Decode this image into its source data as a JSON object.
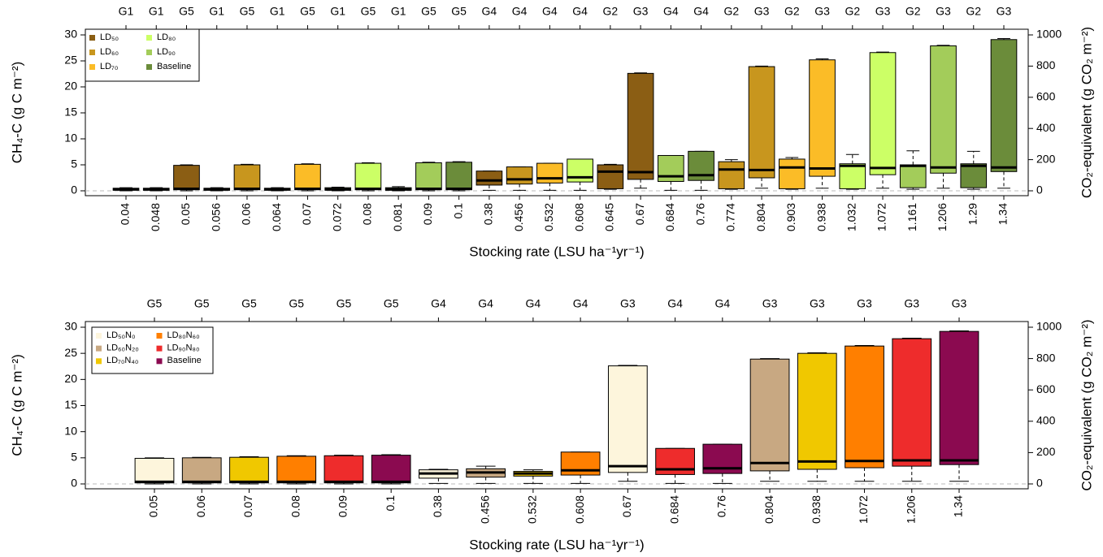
{
  "chart_data": [
    {
      "type": "box",
      "y_label": "CH₄-C (g C m⁻²)",
      "y2_label": "CO₂-equivalent (g CO₂ m⁻²)",
      "x_label": "Stocking rate (LSU  ha⁻¹yr⁻¹)",
      "ylim": [
        0,
        30
      ],
      "yticks": [
        0,
        5,
        10,
        15,
        20,
        25,
        30
      ],
      "y2lim": [
        0,
        1000
      ],
      "y2ticks": [
        0,
        200,
        400,
        600,
        800,
        1000
      ],
      "legend_position": "upper-left",
      "legend": [
        {
          "name": "LD₅₀",
          "color": "#8b5e14"
        },
        {
          "name": "LD₆₀",
          "color": "#c8961e"
        },
        {
          "name": "LD₇₀",
          "color": "#fbbc27"
        },
        {
          "name": "LD₈₀",
          "color": "#ccff66"
        },
        {
          "name": "LD₉₀",
          "color": "#a3cc5a"
        },
        {
          "name": "Baseline",
          "color": "#6b8c3a"
        }
      ],
      "categories": [
        "0.04",
        "0.048",
        "0.05",
        "0.056",
        "0.06",
        "0.064",
        "0.07",
        "0.072",
        "0.08",
        "0.081",
        "0.09",
        "0.1",
        "0.38",
        "0.456",
        "0.532",
        "0.608",
        "0.645",
        "0.67",
        "0.684",
        "0.76",
        "0.774",
        "0.804",
        "0.903",
        "0.938",
        "1.032",
        "1.072",
        "1.161",
        "1.206",
        "1.29",
        "1.34"
      ],
      "top_labels": [
        "G1",
        "G1",
        "G5",
        "G1",
        "G5",
        "G1",
        "G5",
        "G1",
        "G5",
        "G1",
        "G5",
        "G5",
        "G4",
        "G4",
        "G4",
        "G4",
        "G2",
        "G3",
        "G4",
        "G4",
        "G2",
        "G3",
        "G2",
        "G3",
        "G2",
        "G3",
        "G2",
        "G3",
        "G2",
        "G3"
      ],
      "boxes": [
        {
          "color": "#8b5e14",
          "low": 0,
          "q1": 0.1,
          "median": 0.3,
          "q3": 0.5,
          "high": 0.6
        },
        {
          "color": "#c8961e",
          "low": 0,
          "q1": 0.1,
          "median": 0.3,
          "q3": 0.5,
          "high": 0.6
        },
        {
          "color": "#8b5e14",
          "low": 0,
          "q1": 0.2,
          "median": 0.4,
          "q3": 4.9,
          "high": 5.0
        },
        {
          "color": "#fbbc27",
          "low": 0,
          "q1": 0.1,
          "median": 0.3,
          "q3": 0.5,
          "high": 0.6
        },
        {
          "color": "#c8961e",
          "low": 0,
          "q1": 0.2,
          "median": 0.4,
          "q3": 5.0,
          "high": 5.1
        },
        {
          "color": "#ccff66",
          "low": 0,
          "q1": 0.1,
          "median": 0.3,
          "q3": 0.5,
          "high": 0.6
        },
        {
          "color": "#fbbc27",
          "low": 0,
          "q1": 0.2,
          "median": 0.4,
          "q3": 5.1,
          "high": 5.2
        },
        {
          "color": "#a3cc5a",
          "low": 0,
          "q1": 0.1,
          "median": 0.3,
          "q3": 0.6,
          "high": 0.7
        },
        {
          "color": "#ccff66",
          "low": 0,
          "q1": 0.2,
          "median": 0.4,
          "q3": 5.3,
          "high": 5.4
        },
        {
          "color": "#6b8c3a",
          "low": 0,
          "q1": 0.1,
          "median": 0.3,
          "q3": 0.6,
          "high": 0.8
        },
        {
          "color": "#a3cc5a",
          "low": 0,
          "q1": 0.2,
          "median": 0.4,
          "q3": 5.4,
          "high": 5.5
        },
        {
          "color": "#6b8c3a",
          "low": 0,
          "q1": 0.2,
          "median": 0.4,
          "q3": 5.5,
          "high": 5.6
        },
        {
          "color": "#8b5e14",
          "low": 0.1,
          "q1": 1.1,
          "median": 2.0,
          "q3": 3.8,
          "high": 3.8
        },
        {
          "color": "#c8961e",
          "low": 0.1,
          "q1": 1.3,
          "median": 2.2,
          "q3": 4.6,
          "high": 4.6
        },
        {
          "color": "#fbbc27",
          "low": 0.1,
          "q1": 1.5,
          "median": 2.4,
          "q3": 5.3,
          "high": 5.3
        },
        {
          "color": "#ccff66",
          "low": 0.1,
          "q1": 1.7,
          "median": 2.6,
          "q3": 6.1,
          "high": 6.1
        },
        {
          "color": "#8b5e14",
          "low": 0.3,
          "q1": 0.4,
          "median": 3.7,
          "q3": 5.0,
          "high": 5.1
        },
        {
          "color": "#8b5e14",
          "low": 0.5,
          "q1": 2.2,
          "median": 3.6,
          "q3": 22.6,
          "high": 22.7
        },
        {
          "color": "#a3cc5a",
          "low": 0.1,
          "q1": 1.8,
          "median": 2.8,
          "q3": 6.8,
          "high": 6.8
        },
        {
          "color": "#6b8c3a",
          "low": 0.1,
          "q1": 2.0,
          "median": 3.0,
          "q3": 7.6,
          "high": 7.6
        },
        {
          "color": "#c8961e",
          "low": 0.3,
          "q1": 0.4,
          "median": 4.1,
          "q3": 5.6,
          "high": 6.0
        },
        {
          "color": "#c8961e",
          "low": 0.5,
          "q1": 2.5,
          "median": 4.0,
          "q3": 23.9,
          "high": 24.0
        },
        {
          "color": "#fbbc27",
          "low": 0.3,
          "q1": 0.4,
          "median": 4.5,
          "q3": 6.1,
          "high": 6.4
        },
        {
          "color": "#fbbc27",
          "low": 0.5,
          "q1": 2.8,
          "median": 4.3,
          "q3": 25.2,
          "high": 25.4
        },
        {
          "color": "#ccff66",
          "low": 0.3,
          "q1": 0.4,
          "median": 4.8,
          "q3": 5.2,
          "high": 7.0
        },
        {
          "color": "#ccff66",
          "low": 0.5,
          "q1": 3.1,
          "median": 4.4,
          "q3": 26.6,
          "high": 26.7
        },
        {
          "color": "#a3cc5a",
          "low": 0.3,
          "q1": 0.6,
          "median": 4.8,
          "q3": 5.0,
          "high": 7.7
        },
        {
          "color": "#a3cc5a",
          "low": 0.5,
          "q1": 3.4,
          "median": 4.5,
          "q3": 27.9,
          "high": 28.0
        },
        {
          "color": "#6b8c3a",
          "low": 0.3,
          "q1": 0.6,
          "median": 4.8,
          "q3": 5.2,
          "high": 7.6
        },
        {
          "color": "#6b8c3a",
          "low": 0.5,
          "q1": 3.7,
          "median": 4.5,
          "q3": 29.1,
          "high": 29.3
        }
      ]
    },
    {
      "type": "box",
      "y_label": "CH₄-C (g C m⁻²)",
      "y2_label": "CO₂-equivalent (g CO₂ m⁻²)",
      "x_label": "Stocking rate (LSU  ha⁻¹yr⁻¹)",
      "ylim": [
        0,
        30
      ],
      "yticks": [
        0,
        5,
        10,
        15,
        20,
        25,
        30
      ],
      "y2lim": [
        0,
        1000
      ],
      "y2ticks": [
        0,
        200,
        400,
        600,
        800,
        1000
      ],
      "legend_position": "upper-left",
      "legend": [
        {
          "name": "LD₅₀N₀",
          "color": "#fdf5dc"
        },
        {
          "name": "LD₆₀N₂₀",
          "color": "#c8a882"
        },
        {
          "name": "LD₇₀N₄₀",
          "color": "#f0c800"
        },
        {
          "name": "LD₈₀N₆₀",
          "color": "#ff7f00"
        },
        {
          "name": "LD₉₀N₈₀",
          "color": "#ee2c2c"
        },
        {
          "name": "Baseline",
          "color": "#8b0a50"
        }
      ],
      "categories": [
        "0.05",
        "0.06",
        "0.07",
        "0.08",
        "0.09",
        "0.1",
        "0.38",
        "0.456",
        "0.532",
        "0.608",
        "0.67",
        "0.684",
        "0.76",
        "0.804",
        "0.938",
        "1.072",
        "1.206",
        "1.34"
      ],
      "top_labels": [
        "G5",
        "G5",
        "G5",
        "G5",
        "G5",
        "G5",
        "G4",
        "G4",
        "G4",
        "G4",
        "G3",
        "G4",
        "G4",
        "G3",
        "G3",
        "G3",
        "G3",
        "G3"
      ],
      "boxes": [
        {
          "color": "#fdf5dc",
          "low": 0,
          "q1": 0.2,
          "median": 0.4,
          "q3": 4.9,
          "high": 5.0
        },
        {
          "color": "#c8a882",
          "low": 0,
          "q1": 0.2,
          "median": 0.4,
          "q3": 5.0,
          "high": 5.1
        },
        {
          "color": "#f0c800",
          "low": 0,
          "q1": 0.2,
          "median": 0.4,
          "q3": 5.1,
          "high": 5.2
        },
        {
          "color": "#ff7f00",
          "low": 0,
          "q1": 0.2,
          "median": 0.4,
          "q3": 5.3,
          "high": 5.4
        },
        {
          "color": "#ee2c2c",
          "low": 0,
          "q1": 0.2,
          "median": 0.4,
          "q3": 5.4,
          "high": 5.5
        },
        {
          "color": "#8b0a50",
          "low": 0,
          "q1": 0.2,
          "median": 0.4,
          "q3": 5.5,
          "high": 5.6
        },
        {
          "color": "#fdf5dc",
          "low": 0.1,
          "q1": 1.1,
          "median": 2.0,
          "q3": 2.7,
          "high": 2.8
        },
        {
          "color": "#c8a882",
          "low": 0.1,
          "q1": 1.3,
          "median": 2.2,
          "q3": 2.9,
          "high": 3.4
        },
        {
          "color": "#f0c800",
          "low": 0.1,
          "q1": 1.5,
          "median": 2.0,
          "q3": 2.4,
          "high": 2.7
        },
        {
          "color": "#ff7f00",
          "low": 0.1,
          "q1": 1.7,
          "median": 2.6,
          "q3": 6.1,
          "high": 6.1
        },
        {
          "color": "#fdf5dc",
          "low": 0.5,
          "q1": 2.2,
          "median": 3.4,
          "q3": 22.6,
          "high": 22.7
        },
        {
          "color": "#ee2c2c",
          "low": 0.1,
          "q1": 1.8,
          "median": 2.8,
          "q3": 6.8,
          "high": 6.8
        },
        {
          "color": "#8b0a50",
          "low": 0.1,
          "q1": 2.0,
          "median": 3.0,
          "q3": 7.6,
          "high": 7.6
        },
        {
          "color": "#c8a882",
          "low": 0.5,
          "q1": 2.5,
          "median": 4.0,
          "q3": 23.9,
          "high": 24.0
        },
        {
          "color": "#f0c800",
          "low": 0.5,
          "q1": 2.8,
          "median": 4.3,
          "q3": 25.0,
          "high": 25.1
        },
        {
          "color": "#ff7f00",
          "low": 0.5,
          "q1": 3.1,
          "median": 4.4,
          "q3": 26.4,
          "high": 26.5
        },
        {
          "color": "#ee2c2c",
          "low": 0.5,
          "q1": 3.4,
          "median": 4.5,
          "q3": 27.8,
          "high": 27.9
        },
        {
          "color": "#8b0a50",
          "low": 0.5,
          "q1": 3.7,
          "median": 4.5,
          "q3": 29.2,
          "high": 29.3
        }
      ]
    }
  ]
}
